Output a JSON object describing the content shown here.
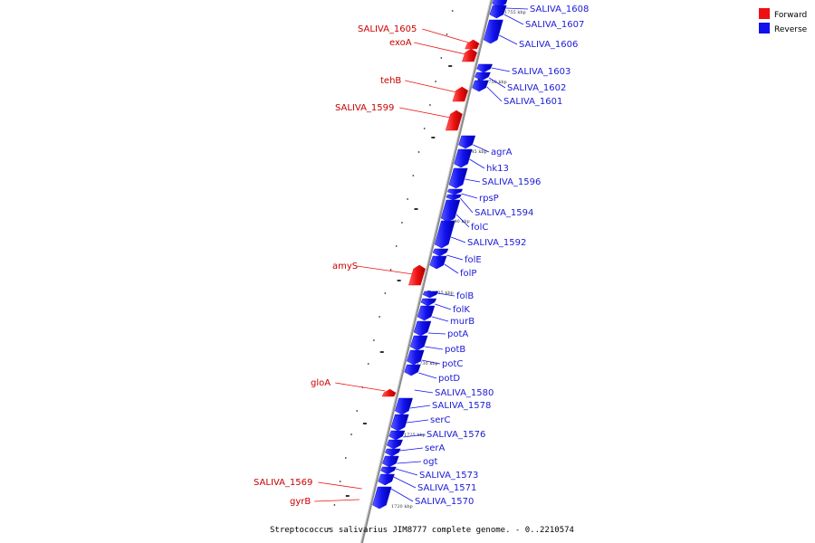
{
  "caption": "Streptococcus salivarius JIM8777 complete genome. - 0..2210574",
  "legend": [
    {
      "label": "Forward",
      "color": "#ee1111"
    },
    {
      "label": "Reverse",
      "color": "#1111ee"
    }
  ],
  "colors": {
    "forward": "#ee1111",
    "reverse": "#1111ee",
    "backbone": "#9a9a9a"
  },
  "kbp_marks": [
    "1755 kbp",
    "1750 kbp",
    "1745 kbp",
    "1740 kbp",
    "1735 kbp",
    "1730 kbp",
    "1725 kbp",
    "1720 kbp"
  ],
  "genes": [
    {
      "name": "SALIVA_1608",
      "strand": "reverse"
    },
    {
      "name": "SALIVA_1607",
      "strand": "reverse"
    },
    {
      "name": "SALIVA_1606",
      "strand": "reverse"
    },
    {
      "name": "SALIVA_1605",
      "strand": "forward"
    },
    {
      "name": "exoA",
      "strand": "forward"
    },
    {
      "name": "SALIVA_1603",
      "strand": "reverse"
    },
    {
      "name": "SALIVA_1602",
      "strand": "reverse"
    },
    {
      "name": "SALIVA_1601",
      "strand": "reverse"
    },
    {
      "name": "tehB",
      "strand": "forward"
    },
    {
      "name": "SALIVA_1599",
      "strand": "forward"
    },
    {
      "name": "agrA",
      "strand": "reverse"
    },
    {
      "name": "hk13",
      "strand": "reverse"
    },
    {
      "name": "SALIVA_1596",
      "strand": "reverse"
    },
    {
      "name": "rpsP",
      "strand": "reverse"
    },
    {
      "name": "SALIVA_1594",
      "strand": "reverse"
    },
    {
      "name": "folC",
      "strand": "reverse"
    },
    {
      "name": "SALIVA_1592",
      "strand": "reverse"
    },
    {
      "name": "folE",
      "strand": "reverse"
    },
    {
      "name": "folP",
      "strand": "reverse"
    },
    {
      "name": "amyS",
      "strand": "forward"
    },
    {
      "name": "folB",
      "strand": "reverse"
    },
    {
      "name": "folK",
      "strand": "reverse"
    },
    {
      "name": "murB",
      "strand": "reverse"
    },
    {
      "name": "potA",
      "strand": "reverse"
    },
    {
      "name": "potB",
      "strand": "reverse"
    },
    {
      "name": "potC",
      "strand": "reverse"
    },
    {
      "name": "potD",
      "strand": "reverse"
    },
    {
      "name": "gloA",
      "strand": "forward"
    },
    {
      "name": "SALIVA_1580",
      "strand": "reverse"
    },
    {
      "name": "SALIVA_1578",
      "strand": "reverse"
    },
    {
      "name": "serC",
      "strand": "reverse"
    },
    {
      "name": "SALIVA_1576",
      "strand": "reverse"
    },
    {
      "name": "serA",
      "strand": "reverse"
    },
    {
      "name": "ogt",
      "strand": "reverse"
    },
    {
      "name": "SALIVA_1573",
      "strand": "reverse"
    },
    {
      "name": "SALIVA_1571",
      "strand": "reverse"
    },
    {
      "name": "SALIVA_1570",
      "strand": "reverse"
    },
    {
      "name": "SALIVA_1569",
      "strand": "forward"
    },
    {
      "name": "gyrB",
      "strand": "forward"
    }
  ]
}
